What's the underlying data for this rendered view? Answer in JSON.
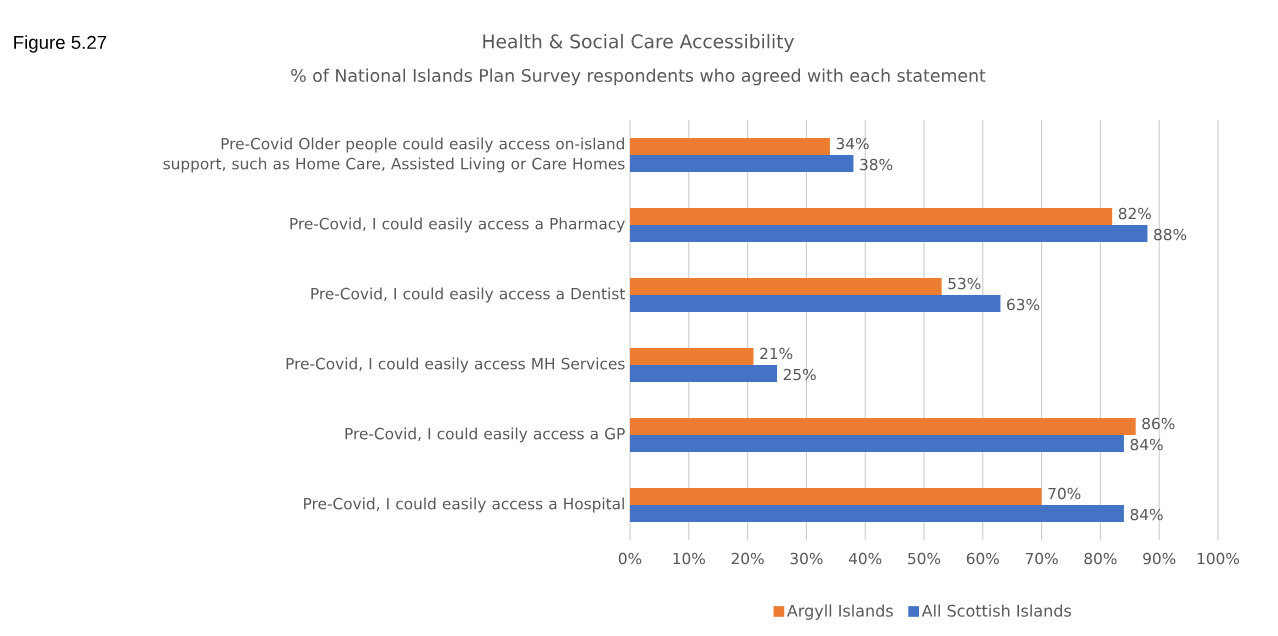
{
  "chart_data": {
    "type": "bar",
    "orientation": "horizontal",
    "title": "Health & Social Care Accessibility",
    "subtitle": "% of National Islands Plan Survey respondents who agreed with each statement",
    "annotations": [
      "Figure 5.27"
    ],
    "categories": [
      "Pre-Covid Older people could easily access on-island support, such as Home Care, Assisted Living or Care Homes",
      "Pre-Covid, I could easily access a Pharmacy",
      "Pre-Covid, I could easily access a Dentist",
      "Pre-Covid, I could easily access MH Services",
      "Pre-Covid, I could easily access a GP",
      "Pre-Covid, I could easily access a Hospital"
    ],
    "series": [
      {
        "name": "Argyll Islands",
        "color": "#ed7d31",
        "values": [
          34,
          82,
          53,
          21,
          86,
          70
        ],
        "value_labels": [
          "34%",
          "82%",
          "53%",
          "21%",
          "86%",
          "70%"
        ]
      },
      {
        "name": "All Scottish Islands",
        "color": "#4472c4",
        "values": [
          38,
          88,
          63,
          25,
          84,
          84
        ],
        "value_labels": [
          "38%",
          "88%",
          "63%",
          "25%",
          "84%",
          "84%"
        ]
      }
    ],
    "xlim": [
      0,
      100
    ],
    "xticks": [
      {
        "value": 0,
        "label": "0%"
      },
      {
        "value": 10,
        "label": "10%"
      },
      {
        "value": 20,
        "label": "20%"
      },
      {
        "value": 30,
        "label": "30%"
      },
      {
        "value": 40,
        "label": "40%"
      },
      {
        "value": 50,
        "label": "50%"
      },
      {
        "value": 60,
        "label": "60%"
      },
      {
        "value": 70,
        "label": "70%"
      },
      {
        "value": 80,
        "label": "80%"
      },
      {
        "value": 90,
        "label": "90%"
      },
      {
        "value": 100,
        "label": "100%"
      }
    ],
    "grid": "x",
    "legend": "bottom"
  }
}
